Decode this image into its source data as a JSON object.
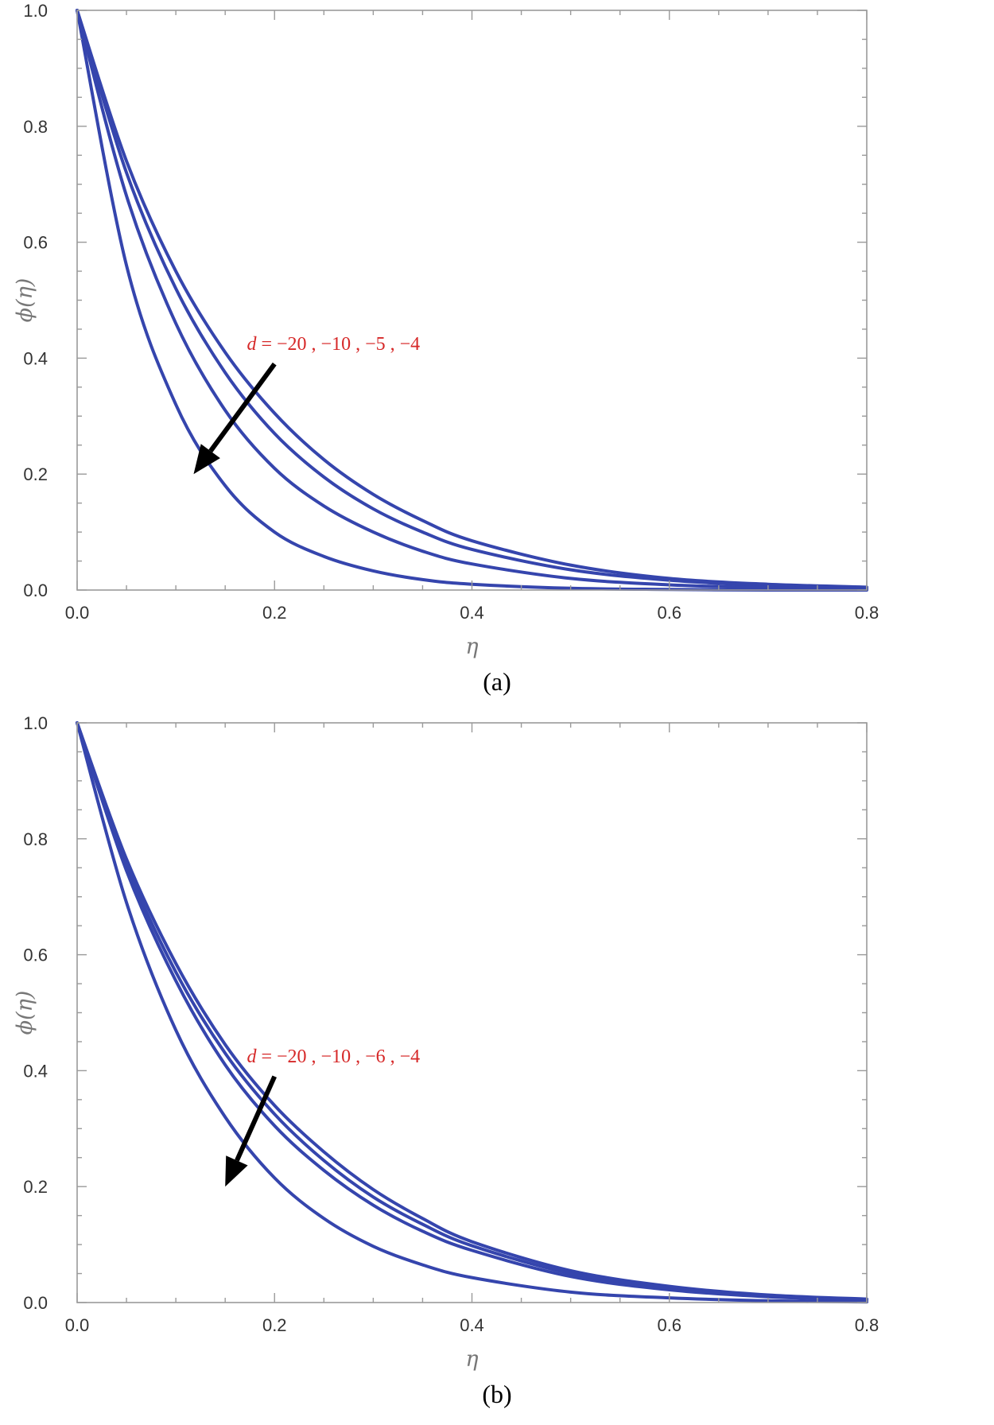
{
  "colors": {
    "curve": "#3545ad",
    "annotation": "#d62828",
    "arrow": "#000000",
    "frame": "#9a9a9a"
  },
  "chart_data": [
    {
      "type": "line",
      "panel_label": "(a)",
      "xlabel": "η",
      "ylabel": "ϕ(η)",
      "xlim": [
        0,
        0.8
      ],
      "ylim": [
        0,
        1.0
      ],
      "xticks": [
        0.0,
        0.2,
        0.4,
        0.6,
        0.8
      ],
      "xtick_labels": [
        "0.0",
        "0.2",
        "0.4",
        "0.6",
        "0.8"
      ],
      "yticks": [
        0.0,
        0.2,
        0.4,
        0.6,
        0.8,
        1.0
      ],
      "ytick_labels": [
        "0.0",
        "0.2",
        "0.4",
        "0.6",
        "0.8",
        "1.0"
      ],
      "grid": false,
      "annotation": {
        "var": "d",
        "rest": " = −20 , −10 , −5 , −4",
        "arrow": {
          "from": [
            0.2,
            0.39
          ],
          "to": [
            0.118,
            0.2
          ]
        }
      },
      "x": [
        0.0,
        0.05,
        0.1,
        0.15,
        0.2,
        0.25,
        0.3,
        0.35,
        0.4,
        0.5,
        0.6,
        0.7,
        0.8
      ],
      "series": [
        {
          "values": [
            1.0,
            0.74,
            0.55,
            0.41,
            0.305,
            0.225,
            0.165,
            0.12,
            0.085,
            0.043,
            0.02,
            0.01,
            0.005
          ]
        },
        {
          "values": [
            1.0,
            0.72,
            0.52,
            0.375,
            0.27,
            0.195,
            0.14,
            0.1,
            0.07,
            0.035,
            0.017,
            0.008,
            0.004
          ]
        },
        {
          "values": [
            1.0,
            0.68,
            0.46,
            0.31,
            0.21,
            0.145,
            0.1,
            0.067,
            0.045,
            0.02,
            0.009,
            0.004,
            0.002
          ]
        },
        {
          "values": [
            1.0,
            0.56,
            0.32,
            0.18,
            0.1,
            0.058,
            0.033,
            0.018,
            0.01,
            0.003,
            0.001,
            0.0,
            0.0
          ]
        }
      ]
    },
    {
      "type": "line",
      "panel_label": "(b)",
      "xlabel": "η",
      "ylabel": "ϕ(η)",
      "xlim": [
        0,
        0.8
      ],
      "ylim": [
        0,
        1.0
      ],
      "xticks": [
        0.0,
        0.2,
        0.4,
        0.6,
        0.8
      ],
      "xtick_labels": [
        "0.0",
        "0.2",
        "0.4",
        "0.6",
        "0.8"
      ],
      "yticks": [
        0.0,
        0.2,
        0.4,
        0.6,
        0.8,
        1.0
      ],
      "ytick_labels": [
        "0.0",
        "0.2",
        "0.4",
        "0.6",
        "0.8",
        "1.0"
      ],
      "grid": false,
      "annotation": {
        "var": "d",
        "rest": " = −20 , −10 , −6 , −4",
        "arrow": {
          "from": [
            0.2,
            0.39
          ],
          "to": [
            0.15,
            0.2
          ]
        }
      },
      "x": [
        0.0,
        0.05,
        0.1,
        0.15,
        0.2,
        0.25,
        0.3,
        0.35,
        0.4,
        0.5,
        0.6,
        0.7,
        0.8
      ],
      "series": [
        {
          "values": [
            1.0,
            0.765,
            0.585,
            0.445,
            0.34,
            0.26,
            0.195,
            0.145,
            0.105,
            0.055,
            0.028,
            0.013,
            0.006
          ]
        },
        {
          "values": [
            1.0,
            0.755,
            0.57,
            0.43,
            0.325,
            0.245,
            0.182,
            0.135,
            0.098,
            0.05,
            0.025,
            0.011,
            0.005
          ]
        },
        {
          "values": [
            1.0,
            0.745,
            0.555,
            0.41,
            0.305,
            0.228,
            0.168,
            0.123,
            0.09,
            0.045,
            0.022,
            0.01,
            0.004
          ]
        },
        {
          "values": [
            1.0,
            0.69,
            0.47,
            0.32,
            0.215,
            0.145,
            0.097,
            0.065,
            0.043,
            0.018,
            0.008,
            0.003,
            0.001
          ]
        }
      ]
    }
  ]
}
